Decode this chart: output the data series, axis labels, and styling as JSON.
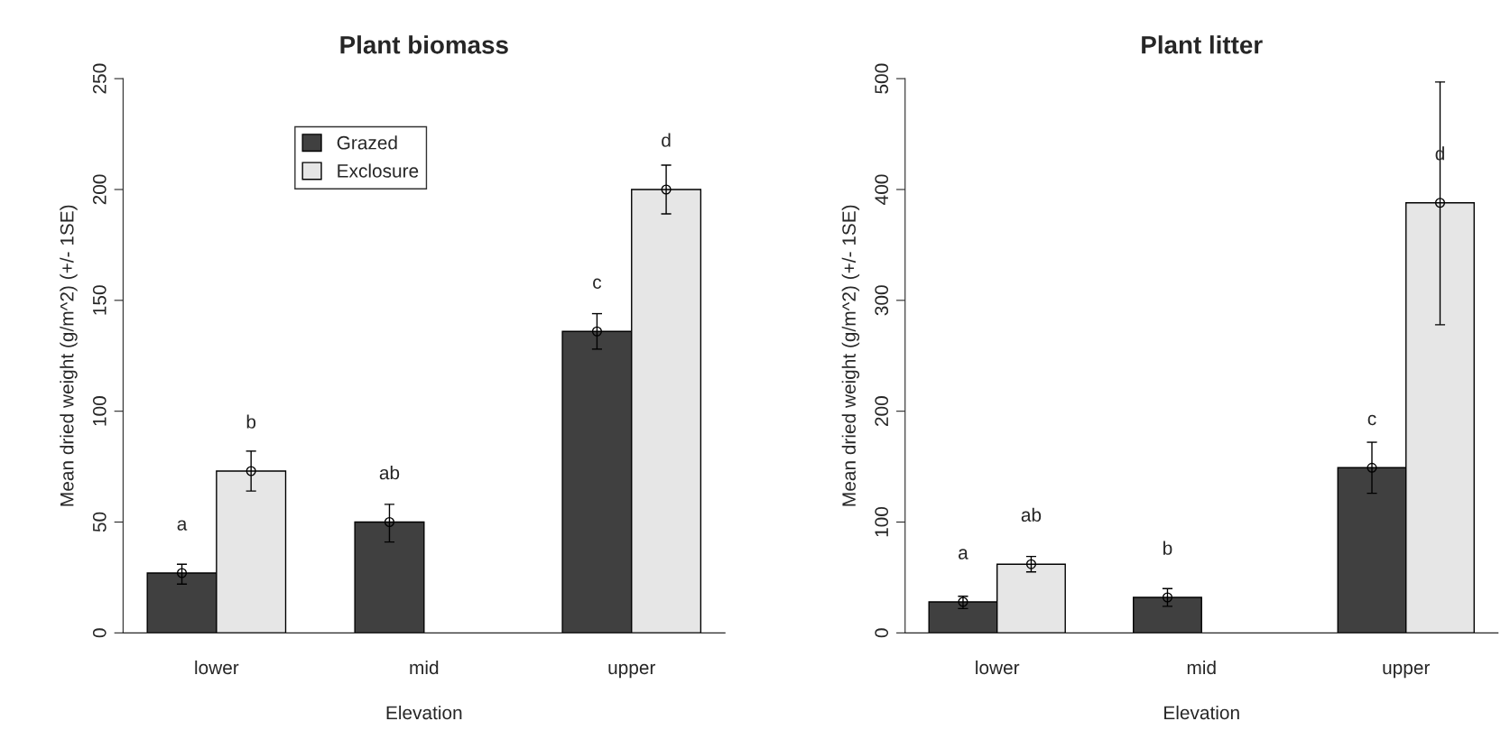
{
  "chart_data": [
    {
      "type": "bar",
      "title": "Plant biomass",
      "xlabel": "Elevation",
      "ylabel": "Mean dried weight (g/m^2) (+/- 1SE)",
      "categories": [
        "lower",
        "mid",
        "upper"
      ],
      "ylim": [
        0,
        250
      ],
      "yticks": [
        0,
        50,
        100,
        150,
        200,
        250
      ],
      "legend": "top",
      "marker": "circle",
      "grid": false,
      "series": [
        {
          "name": "Grazed",
          "color": "#404040",
          "values": [
            27,
            50,
            136
          ],
          "errors": [
            [
              22,
              31
            ],
            [
              41,
              58
            ],
            [
              128,
              144
            ]
          ],
          "value_labels": [
            "a",
            "ab",
            "c"
          ]
        },
        {
          "name": "Exclosure",
          "color": "#e6e6e6",
          "values": [
            73,
            null,
            200
          ],
          "errors": [
            [
              64,
              82
            ],
            null,
            [
              189,
              211
            ]
          ],
          "value_labels": [
            "b",
            null,
            "d"
          ]
        }
      ]
    },
    {
      "type": "bar",
      "title": "Plant litter",
      "xlabel": "Elevation",
      "ylabel": "Mean dried weight (g/m^2) (+/- 1SE)",
      "categories": [
        "lower",
        "mid",
        "upper"
      ],
      "ylim": [
        0,
        500
      ],
      "yticks": [
        0,
        100,
        200,
        300,
        400,
        500
      ],
      "legend": false,
      "marker": "circle",
      "grid": false,
      "series": [
        {
          "color": "#404040",
          "values": [
            28,
            32,
            149
          ],
          "errors": [
            [
              22,
              33
            ],
            [
              24,
              40
            ],
            [
              126,
              172
            ]
          ],
          "value_labels": [
            "a",
            "b",
            "c"
          ]
        },
        {
          "color": "#e6e6e6",
          "values": [
            62,
            null,
            388
          ],
          "errors": [
            [
              55,
              69
            ],
            null,
            [
              278,
              497
            ]
          ],
          "value_labels": [
            "ab",
            null,
            "d"
          ]
        }
      ]
    }
  ]
}
